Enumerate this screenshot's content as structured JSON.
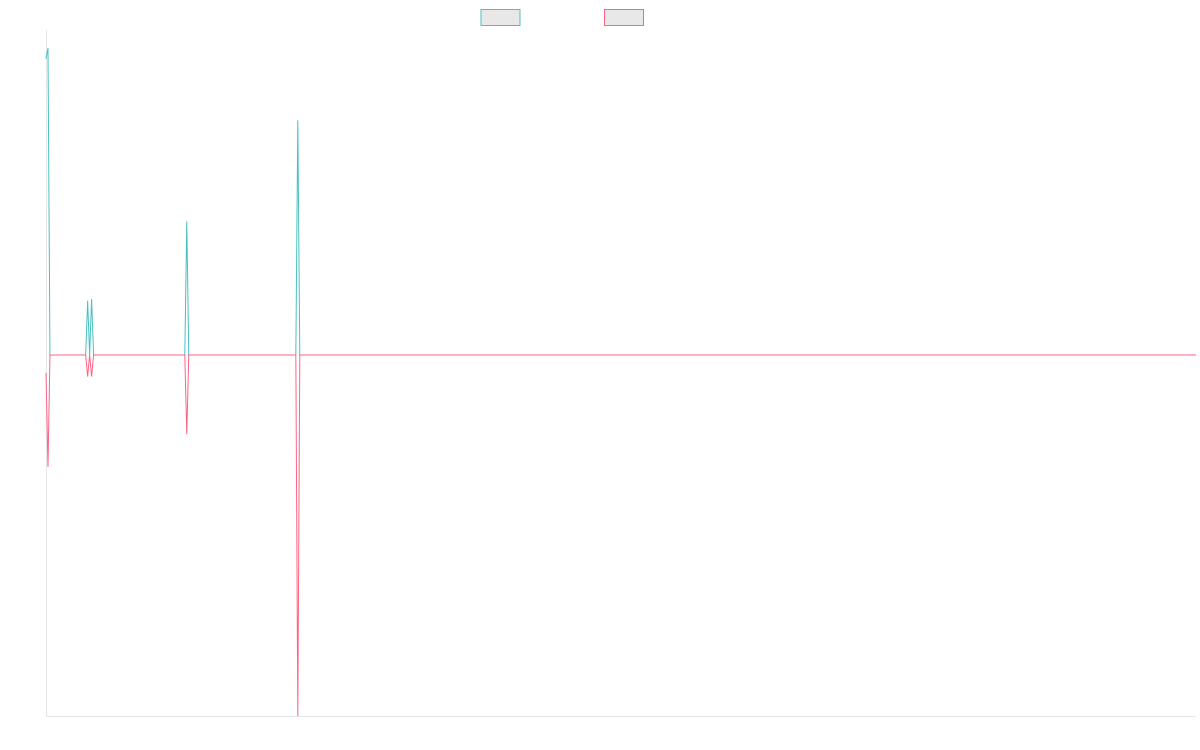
{
  "chart_data": {
    "type": "line",
    "title": "",
    "xlabel": "",
    "ylabel": "",
    "xlim": [
      0,
      290
    ],
    "ylim": [
      -1,
      0.9
    ],
    "grid": false,
    "legend_position": "top-center",
    "x": [
      0,
      0.5,
      1,
      10,
      10.5,
      11,
      11.5,
      12,
      35,
      35.5,
      36,
      63,
      63.5,
      64,
      290
    ],
    "series": [
      {
        "name": "",
        "color": "#4bc0c0",
        "values": [
          0.82,
          0.85,
          0,
          0,
          0.15,
          0,
          0.155,
          0,
          0,
          0.37,
          0,
          0,
          0.65,
          0,
          0
        ]
      },
      {
        "name": "",
        "color": "#ff6384",
        "values": [
          -0.05,
          -0.31,
          0,
          0,
          -0.06,
          0,
          -0.06,
          0,
          0,
          -0.22,
          0,
          0,
          -1.0,
          0,
          0
        ]
      }
    ]
  }
}
